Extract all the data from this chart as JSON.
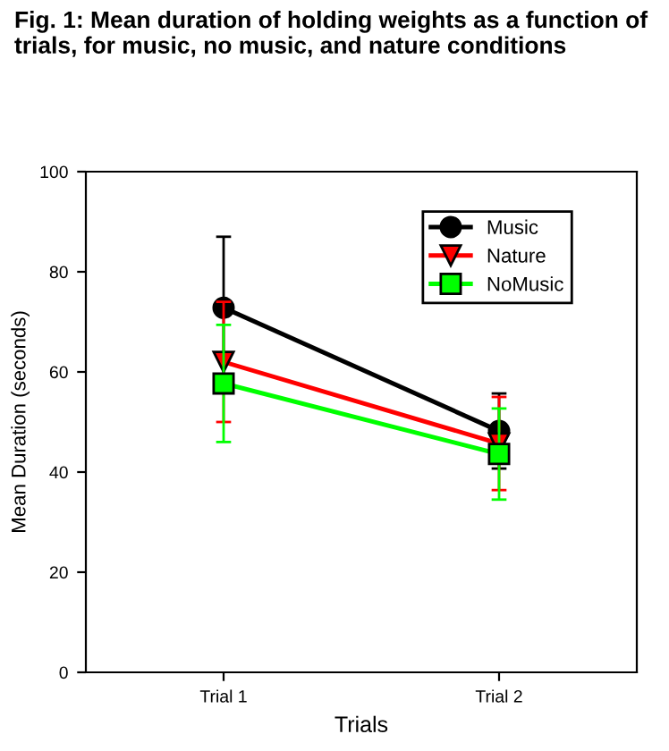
{
  "chart_data": {
    "type": "line",
    "title": "Fig. 1: Mean duration of holding weights as a function of trials, for music, no music, and nature conditions",
    "xlabel": "Trials",
    "ylabel": "Mean Duration (seconds)",
    "categories": [
      "Trial 1",
      "Trial 2"
    ],
    "series": [
      {
        "name": "Music",
        "color": "#000000",
        "marker": "circle",
        "values": [
          72.8,
          48.2
        ],
        "errors": [
          14.2,
          7.5
        ]
      },
      {
        "name": "Nature",
        "color": "#ff0000",
        "marker": "triangle",
        "values": [
          62,
          45.7
        ],
        "errors": [
          12,
          9.3
        ]
      },
      {
        "name": "NoMusic",
        "color": "#00ff00",
        "marker": "square",
        "values": [
          57.7,
          43.6
        ],
        "errors": [
          11.7,
          9.1
        ]
      }
    ],
    "ylim": [
      0,
      100
    ],
    "yticks": [
      0,
      20,
      40,
      60,
      80,
      100
    ],
    "grid": false,
    "legend": "top right",
    "line_style": "solid"
  }
}
